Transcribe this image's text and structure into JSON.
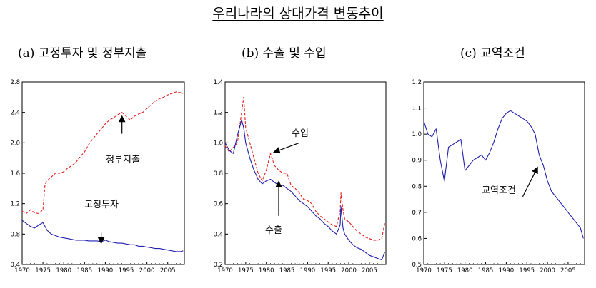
{
  "title": "우리나라의 상대가격 변동추이",
  "chart_data": [
    {
      "type": "line",
      "panel_title": "(a) 고정투자 및 정부지출",
      "xlim": [
        1970,
        2009
      ],
      "ylim": [
        0.4,
        2.8
      ],
      "x_ticks": [
        "1970",
        "1975",
        "1980",
        "1985",
        "1990",
        "1995",
        "2000",
        "2005"
      ],
      "y_ticks": [
        "0.4",
        "0.8",
        "1.2",
        "1.6",
        "2.0",
        "2.4",
        "2.8"
      ],
      "series": [
        {
          "name": "정부지출",
          "color": "#e02020",
          "dashed": true,
          "x": [
            1970,
            1971,
            1972,
            1973,
            1974,
            1975,
            1975.5,
            1976,
            1977,
            1978,
            1979,
            1980,
            1981,
            1982,
            1983,
            1984,
            1985,
            1986,
            1987,
            1988,
            1989,
            1990,
            1991,
            1992,
            1993,
            1994,
            1995,
            1996,
            1997,
            1998,
            1999,
            2000,
            2001,
            2002,
            2003,
            2004,
            2005,
            2006,
            2007,
            2008,
            2008.7
          ],
          "y": [
            1.1,
            1.07,
            1.12,
            1.08,
            1.07,
            1.12,
            1.45,
            1.5,
            1.55,
            1.6,
            1.6,
            1.62,
            1.67,
            1.7,
            1.75,
            1.82,
            1.88,
            1.98,
            2.05,
            2.12,
            2.18,
            2.25,
            2.3,
            2.33,
            2.37,
            2.4,
            2.35,
            2.3,
            2.35,
            2.38,
            2.4,
            2.45,
            2.5,
            2.55,
            2.58,
            2.6,
            2.63,
            2.65,
            2.67,
            2.66,
            2.65
          ]
        },
        {
          "name": "고정투자",
          "color": "#2020b0",
          "dashed": false,
          "x": [
            1970,
            1971,
            1972,
            1973,
            1974,
            1975,
            1976,
            1977,
            1978,
            1979,
            1980,
            1981,
            1982,
            1983,
            1984,
            1985,
            1986,
            1987,
            1988,
            1989,
            1990,
            1991,
            1992,
            1993,
            1994,
            1995,
            1996,
            1997,
            1998,
            1999,
            2000,
            2001,
            2002,
            2003,
            2004,
            2005,
            2006,
            2007,
            2008,
            2008.7
          ],
          "y": [
            0.98,
            0.94,
            0.9,
            0.88,
            0.92,
            0.95,
            0.85,
            0.8,
            0.78,
            0.76,
            0.75,
            0.74,
            0.73,
            0.72,
            0.72,
            0.72,
            0.71,
            0.71,
            0.71,
            0.7,
            0.72,
            0.7,
            0.69,
            0.68,
            0.68,
            0.67,
            0.66,
            0.66,
            0.64,
            0.64,
            0.63,
            0.62,
            0.61,
            0.61,
            0.6,
            0.59,
            0.58,
            0.57,
            0.57,
            0.58
          ]
        }
      ],
      "annotations": [
        "정부지출",
        "고정투자"
      ]
    },
    {
      "type": "line",
      "panel_title": "(b) 수출 및 수입",
      "xlim": [
        1970,
        2009
      ],
      "ylim": [
        0.2,
        1.4
      ],
      "x_ticks": [
        "1970",
        "1975",
        "1980",
        "1985",
        "1990",
        "1995",
        "2000",
        "2005"
      ],
      "y_ticks": [
        "0.2",
        "0.4",
        "0.6",
        "0.8",
        "1.0",
        "1.2",
        "1.4"
      ],
      "series": [
        {
          "name": "수입",
          "color": "#e02020",
          "dashed": true,
          "x": [
            1970,
            1971,
            1972,
            1973,
            1974,
            1974.5,
            1975,
            1976,
            1977,
            1978,
            1979,
            1980,
            1981,
            1982,
            1983,
            1984,
            1985,
            1986,
            1987,
            1988,
            1989,
            1990,
            1991,
            1992,
            1993,
            1994,
            1995,
            1996,
            1997,
            1997.9,
            1998.1,
            1998.6,
            1999,
            2000,
            2001,
            2002,
            2003,
            2004,
            2005,
            2006,
            2007,
            2008,
            2008.7
          ],
          "y": [
            0.98,
            0.94,
            0.97,
            1.0,
            1.2,
            1.3,
            1.1,
            1.0,
            0.9,
            0.8,
            0.75,
            0.82,
            0.93,
            0.85,
            0.82,
            0.8,
            0.8,
            0.72,
            0.7,
            0.67,
            0.63,
            0.62,
            0.6,
            0.55,
            0.52,
            0.5,
            0.48,
            0.46,
            0.45,
            0.55,
            0.67,
            0.56,
            0.5,
            0.48,
            0.45,
            0.42,
            0.4,
            0.38,
            0.37,
            0.36,
            0.36,
            0.37,
            0.47
          ]
        },
        {
          "name": "수출",
          "color": "#2020b0",
          "dashed": false,
          "x": [
            1970,
            1971,
            1972,
            1973,
            1974,
            1974.5,
            1975,
            1976,
            1977,
            1978,
            1979,
            1980,
            1981,
            1982,
            1983,
            1984,
            1985,
            1986,
            1987,
            1988,
            1989,
            1990,
            1991,
            1992,
            1993,
            1994,
            1995,
            1996,
            1997,
            1997.9,
            1998.1,
            1998.6,
            1999,
            2000,
            2001,
            2002,
            2003,
            2004,
            2005,
            2006,
            2007,
            2008,
            2008.7
          ],
          "y": [
            1.0,
            0.95,
            0.93,
            1.05,
            1.15,
            1.1,
            1.0,
            0.9,
            0.82,
            0.76,
            0.73,
            0.75,
            0.76,
            0.74,
            0.72,
            0.72,
            0.7,
            0.68,
            0.65,
            0.62,
            0.6,
            0.58,
            0.55,
            0.52,
            0.5,
            0.47,
            0.45,
            0.42,
            0.4,
            0.46,
            0.58,
            0.44,
            0.4,
            0.36,
            0.33,
            0.31,
            0.3,
            0.28,
            0.26,
            0.25,
            0.24,
            0.23,
            0.28
          ]
        }
      ],
      "annotations": [
        "수입",
        "수출"
      ]
    },
    {
      "type": "line",
      "panel_title": "(c) 교역조건",
      "xlim": [
        1970,
        2009
      ],
      "ylim": [
        0.5,
        1.2
      ],
      "x_ticks": [
        "1970",
        "1975",
        "1980",
        "1985",
        "1990",
        "1995",
        "2000",
        "2005"
      ],
      "y_ticks": [
        "0.5",
        "0.6",
        "0.7",
        "0.8",
        "0.9",
        "1.0",
        "1.1",
        "1.2"
      ],
      "series": [
        {
          "name": "교역조건",
          "color": "#2020b0",
          "dashed": false,
          "x": [
            1970,
            1971,
            1972,
            1973,
            1974,
            1975,
            1976,
            1977,
            1978,
            1979,
            1980,
            1981,
            1982,
            1983,
            1984,
            1985,
            1986,
            1987,
            1988,
            1989,
            1990,
            1991,
            1992,
            1993,
            1994,
            1995,
            1996,
            1997,
            1998,
            1999,
            2000,
            2001,
            2002,
            2003,
            2004,
            2005,
            2006,
            2007,
            2008,
            2008.7
          ],
          "y": [
            1.05,
            1.0,
            0.99,
            1.02,
            0.9,
            0.82,
            0.95,
            0.96,
            0.97,
            0.98,
            0.86,
            0.88,
            0.9,
            0.91,
            0.92,
            0.9,
            0.93,
            0.97,
            1.02,
            1.06,
            1.08,
            1.09,
            1.08,
            1.07,
            1.06,
            1.05,
            1.03,
            1.0,
            0.92,
            0.88,
            0.82,
            0.78,
            0.76,
            0.74,
            0.72,
            0.7,
            0.68,
            0.66,
            0.64,
            0.6
          ]
        }
      ],
      "annotations": [
        "교역조건"
      ]
    }
  ]
}
